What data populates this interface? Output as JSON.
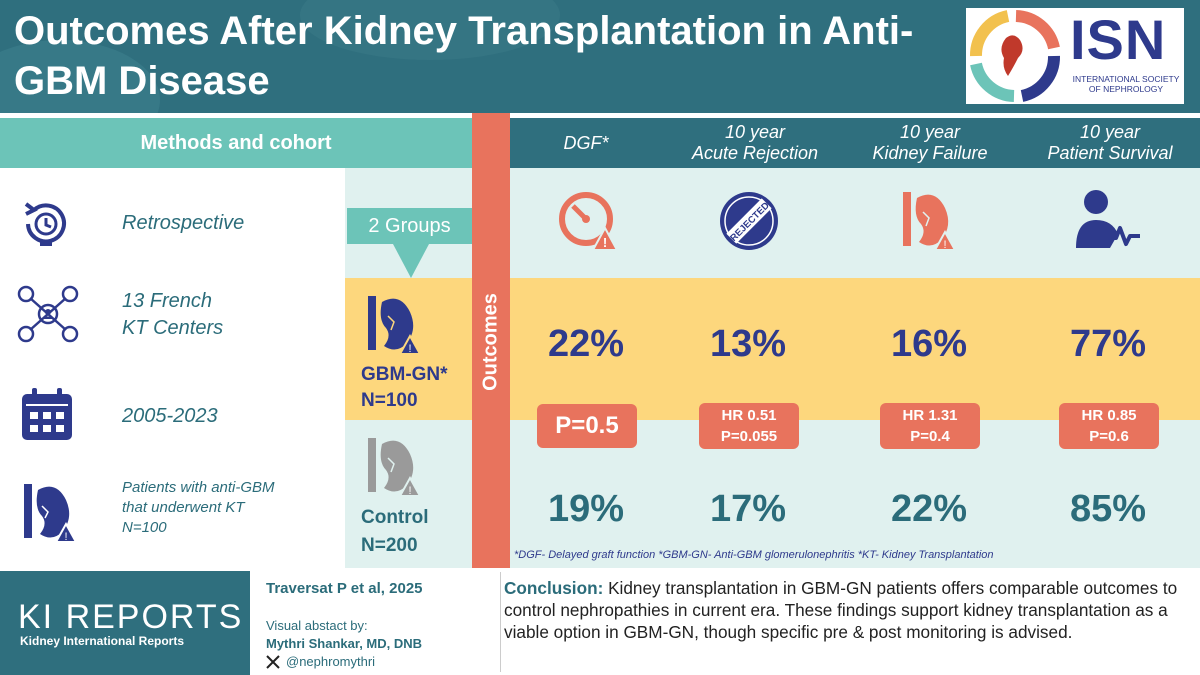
{
  "header": {
    "title": "Outcomes After Kidney Transplantation in Anti-GBM Disease",
    "logo_text": "ISN",
    "logo_subtitle": "INTERNATIONAL SOCIETY OF NEPHROLOGY"
  },
  "methods": {
    "title": "Methods and cohort",
    "items": [
      {
        "icon": "history-clock-icon",
        "text": "Retrospective"
      },
      {
        "icon": "network-people-icon",
        "line1": "13 French",
        "line2": "KT Centers"
      },
      {
        "icon": "calendar-icon",
        "text": "2005-2023"
      },
      {
        "icon": "kidney-warning-icon",
        "line1": "Patients with anti-GBM",
        "line2": "that underwent KT",
        "line3": "N=100"
      }
    ]
  },
  "groups": {
    "badge": "2 Groups",
    "gbm": {
      "name": "GBM-GN*",
      "n": "N=100"
    },
    "control": {
      "name": "Control",
      "n": "N=200"
    }
  },
  "outcomes_label": "Outcomes",
  "columns": [
    {
      "line1": "DGF*",
      "line2": "",
      "icon": "gauge-warning-icon",
      "gbm": "22%",
      "control": "19%",
      "stat1": "P=0.5",
      "stat2": ""
    },
    {
      "line1": "10 year",
      "line2": "Acute Rejection",
      "icon": "rejected-stamp-icon",
      "stamp": "REJECTED",
      "gbm": "13%",
      "control": "17%",
      "stat1": "HR 0.51",
      "stat2": "P=0.055"
    },
    {
      "line1": "10 year",
      "line2": "Kidney Failure",
      "icon": "kidney-failure-icon",
      "gbm": "16%",
      "control": "22%",
      "stat1": "HR 1.31",
      "stat2": "P=0.4"
    },
    {
      "line1": "10 year",
      "line2": "Patient Survival",
      "icon": "patient-heartbeat-icon",
      "gbm": "77%",
      "control": "85%",
      "stat1": "HR 0.85",
      "stat2": "P=0.6"
    }
  ],
  "footnote": "*DGF- Delayed graft function *GBM-GN- Anti-GBM glomerulonephritis *KT- Kidney Transplantation",
  "footer": {
    "journal": "KI REPORTS",
    "journal_sub": "Kidney International Reports",
    "citation": "Traversat P et al, 2025",
    "visual_label": "Visual abstact by:",
    "author": "Mythri Shankar, MD, DNB",
    "twitter": "@nephromythri",
    "conclusion_label": "Conclusion:",
    "conclusion_text": " Kidney transplantation in GBM-GN patients offers comparable outcomes to control nephropathies in current era. These findings support kidney transplantation as a viable option in GBM-GN, though specific pre & post monitoring is advised."
  },
  "colors": {
    "teal_dark": "#2f6f7e",
    "teal_light": "#6cc4b8",
    "mint": "#e0f1ef",
    "yellow": "#fdd77d",
    "coral": "#e8735d",
    "navy": "#2e3a8c"
  }
}
